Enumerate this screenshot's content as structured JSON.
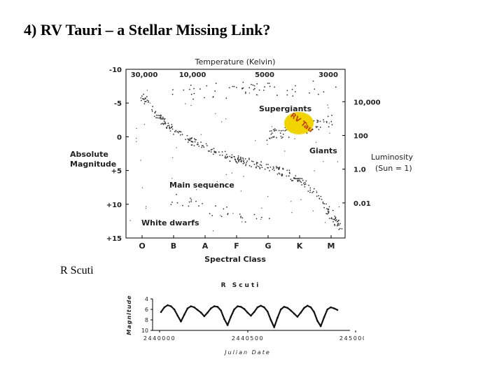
{
  "slide": {
    "title": "4) RV Tauri – a Stellar Missing Link?",
    "caption": "R Scuti"
  },
  "colors": {
    "highlight": "#f2d400",
    "points": "#333333",
    "frame": "#000000"
  },
  "chart_data": [
    {
      "type": "scatter",
      "title": "Temperature (Kelvin)",
      "xlabel": "Spectral Class",
      "ylabel": "Absolute Magnitude",
      "y2label": "Luminosity (Sun = 1)",
      "x_categories": [
        "O",
        "B",
        "A",
        "F",
        "G",
        "K",
        "M"
      ],
      "top_ticks": [
        "30,000",
        "10,000",
        "5000",
        "3000"
      ],
      "left_ticks": [
        "-10",
        "-5",
        "0",
        "+5",
        "+10",
        "+15"
      ],
      "right_ticks": [
        "10,000",
        "100",
        "1.0",
        "0.01"
      ],
      "ylim": [
        15,
        -10
      ],
      "annotations": {
        "supergiants": "Supergiants",
        "giants": "Giants",
        "main_sequence": "Main sequence",
        "white_dwarfs": "White dwarfs",
        "rv_tau": "RV Tau"
      },
      "regions": [
        {
          "name": "main-sequence",
          "points": [
            [
              0,
              -6
            ],
            [
              0.5,
              -3
            ],
            [
              1,
              -1
            ],
            [
              1.5,
              0.5
            ],
            [
              2,
              1.5
            ],
            [
              2.5,
              2.5
            ],
            [
              3,
              3.3
            ],
            [
              3.5,
              4
            ],
            [
              4,
              4.6
            ],
            [
              4.5,
              5.3
            ],
            [
              5,
              6.5
            ],
            [
              5.5,
              8.5
            ],
            [
              6,
              11.5
            ],
            [
              6.3,
              13.5
            ]
          ]
        },
        {
          "name": "giants",
          "points": [
            [
              4,
              -0.2
            ],
            [
              4.5,
              -0.6
            ],
            [
              5,
              -1
            ],
            [
              5.5,
              -1.5
            ],
            [
              6,
              -2.5
            ]
          ]
        },
        {
          "name": "supergiants",
          "points": [
            [
              1,
              -6.5
            ],
            [
              2,
              -6.8
            ],
            [
              3,
              -6.9
            ],
            [
              4,
              -7
            ],
            [
              5,
              -7.2
            ],
            [
              6,
              -7.4
            ]
          ]
        },
        {
          "name": "white-dwarfs",
          "points": [
            [
              1,
              9
            ],
            [
              2,
              10.5
            ],
            [
              3,
              11.5
            ],
            [
              4,
              12.5
            ]
          ]
        }
      ]
    },
    {
      "type": "line",
      "title": "R Scuti",
      "xlabel": "Julian Date",
      "ylabel": "Magnitude",
      "x_ticks": [
        "2440000",
        "2440500",
        "2450000"
      ],
      "y_ticks": [
        "4",
        "6",
        "8",
        "10"
      ],
      "ylim": [
        10,
        4
      ],
      "series": [
        {
          "values": [
            6.5,
            5.6,
            5.2,
            5.4,
            6,
            7.2,
            8.3,
            7,
            5.8,
            5.4,
            5.6,
            6.1,
            6.6,
            7.3,
            6.6,
            5.8,
            5.4,
            5.5,
            6.2,
            7.8,
            9,
            7.4,
            6,
            5.4,
            5.5,
            5.9,
            6.6,
            7.2,
            6.5,
            5.6,
            5.3,
            5.6,
            6.4,
            8,
            9.4,
            7.6,
            6,
            5.5,
            5.7,
            6.2,
            6.8,
            7.4,
            6.6,
            5.7,
            5.3,
            5.6,
            6.5,
            8.2,
            9.2,
            7.5,
            6,
            5.6,
            5.8,
            6.1
          ]
        }
      ]
    }
  ]
}
